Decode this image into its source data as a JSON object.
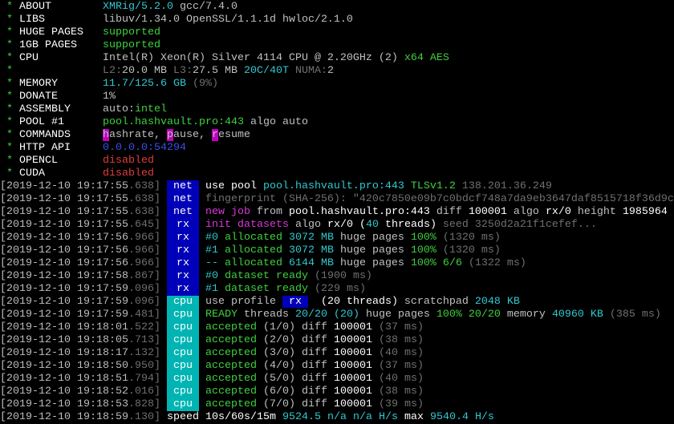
{
  "colors": {
    "W": "#ffffff",
    "L": "#c0c0c0",
    "G": "#3fd03f",
    "C": "#30c8d0",
    "B": "#3b4fe8",
    "R": "#e03c3c",
    "D": "#707070",
    "M": "#d838d8",
    "K": "#c000c0",
    "Y": "#0000b8"
  },
  "header": [
    {
      "label": "ABOUT",
      "parts": [
        [
          "XMRig/5.2.0",
          "C"
        ],
        [
          " gcc/7.4.0",
          "L"
        ]
      ]
    },
    {
      "label": "LIBS",
      "parts": [
        [
          "libuv/1.34.0 OpenSSL/1.1.1d hwloc/2.1.0",
          "L"
        ]
      ]
    },
    {
      "label": "HUGE PAGES",
      "parts": [
        [
          "supported",
          "G"
        ]
      ]
    },
    {
      "label": "1GB PAGES",
      "parts": [
        [
          "supported",
          "G"
        ]
      ]
    },
    {
      "label": "CPU",
      "parts": [
        [
          "Intel(R) Xeon(R) Silver 4114 CPU @ 2.20GHz (2)",
          "L"
        ],
        [
          " x64 AES",
          "G"
        ]
      ]
    },
    {
      "label": "",
      "parts": [
        [
          "L2:",
          "D"
        ],
        [
          "20.0 MB",
          "L"
        ],
        [
          " L3:",
          "D"
        ],
        [
          "27.5 MB",
          "L"
        ],
        [
          " 20C/40T",
          "C"
        ],
        [
          " NUMA:",
          "D"
        ],
        [
          "2",
          "L"
        ]
      ]
    },
    {
      "label": "MEMORY",
      "parts": [
        [
          "11.7/125.6 GB",
          "C"
        ],
        [
          " (9%)",
          "D"
        ]
      ]
    },
    {
      "label": "DONATE",
      "parts": [
        [
          "1%",
          "L"
        ]
      ]
    },
    {
      "label": "ASSEMBLY",
      "parts": [
        [
          "auto:",
          "L"
        ],
        [
          "intel",
          "G"
        ]
      ]
    },
    {
      "label": "POOL #1",
      "parts": [
        [
          "pool.hashvault.pro:443",
          "G"
        ],
        [
          " algo auto",
          "L"
        ]
      ]
    },
    {
      "label": "COMMANDS",
      "parts": [
        [
          "h",
          "L",
          "K"
        ],
        [
          "ashrate, ",
          "L"
        ],
        [
          "p",
          "L",
          "K"
        ],
        [
          "ause, ",
          "L"
        ],
        [
          "r",
          "L",
          "K"
        ],
        [
          "esume",
          "L"
        ]
      ]
    },
    {
      "label": "HTTP API",
      "parts": [
        [
          "0.0.0.0:54294",
          "B"
        ]
      ]
    },
    {
      "label": "OPENCL",
      "parts": [
        [
          "disabled",
          "R"
        ]
      ]
    },
    {
      "label": "CUDA",
      "parts": [
        [
          "disabled",
          "R"
        ]
      ]
    }
  ],
  "log": [
    {
      "time": "2019-12-10 19:17:55.638",
      "tag": "net",
      "parts": [
        [
          "use pool ",
          "W"
        ],
        [
          "pool.hashvault.pro:443",
          "C"
        ],
        [
          " TLSv1.2",
          "G"
        ],
        [
          " 138.201.36.249",
          "D"
        ]
      ]
    },
    {
      "time": "2019-12-10 19:17:55.638",
      "tag": "net",
      "parts": [
        [
          "fingerprint (SHA-256): \"420c7850e09b7c0bdcf748a7da9eb3647daf8515718f36d9c",
          "D"
        ]
      ]
    },
    {
      "time": "2019-12-10 19:17:55.638",
      "tag": "net",
      "parts": [
        [
          "new job",
          "M"
        ],
        [
          " from ",
          "L"
        ],
        [
          "pool.hashvault.pro:443",
          "W"
        ],
        [
          " diff ",
          "L"
        ],
        [
          "100001",
          "W"
        ],
        [
          " algo ",
          "L"
        ],
        [
          "rx/0",
          "W"
        ],
        [
          " height ",
          "L"
        ],
        [
          "1985964",
          "W"
        ]
      ]
    },
    {
      "time": "2019-12-10 19:17:55.645",
      "tag": "rx",
      "parts": [
        [
          "init datasets",
          "M"
        ],
        [
          " algo ",
          "L"
        ],
        [
          "rx/0",
          "W"
        ],
        [
          " (",
          "W"
        ],
        [
          "40",
          "C"
        ],
        [
          " threads)",
          "W"
        ],
        [
          " seed 3250d2a21f1cefef...",
          "D"
        ]
      ]
    },
    {
      "time": "2019-12-10 19:17:56.966",
      "tag": "rx",
      "parts": [
        [
          "#0",
          "C"
        ],
        [
          " allocated ",
          "G"
        ],
        [
          "3072 MB",
          "C"
        ],
        [
          " huge pages ",
          "L"
        ],
        [
          "100%",
          "G"
        ],
        [
          " (1320 ms)",
          "D"
        ]
      ]
    },
    {
      "time": "2019-12-10 19:17:56.966",
      "tag": "rx",
      "parts": [
        [
          "#1",
          "C"
        ],
        [
          " allocated ",
          "G"
        ],
        [
          "3072 MB",
          "C"
        ],
        [
          " huge pages ",
          "L"
        ],
        [
          "100%",
          "G"
        ],
        [
          " (1320 ms)",
          "D"
        ]
      ]
    },
    {
      "time": "2019-12-10 19:17:56.966",
      "tag": "rx",
      "parts": [
        [
          "--",
          "C"
        ],
        [
          " allocated ",
          "G"
        ],
        [
          "6144 MB",
          "C"
        ],
        [
          " huge pages ",
          "L"
        ],
        [
          "100%",
          "G"
        ],
        [
          " 6/6",
          "G"
        ],
        [
          " (1322 ms)",
          "D"
        ]
      ]
    },
    {
      "time": "2019-12-10 19:17:58.867",
      "tag": "rx",
      "parts": [
        [
          "#0",
          "C"
        ],
        [
          " dataset ready",
          "G"
        ],
        [
          " (1900 ms)",
          "D"
        ]
      ]
    },
    {
      "time": "2019-12-10 19:17:59.096",
      "tag": "rx",
      "parts": [
        [
          "#1",
          "C"
        ],
        [
          " dataset ready",
          "G"
        ],
        [
          " (229 ms)",
          "D"
        ]
      ]
    },
    {
      "time": "2019-12-10 19:17:59.096",
      "tag": "cpu",
      "parts": [
        [
          "use profile ",
          "L"
        ],
        [
          " rx ",
          "W",
          "Y"
        ],
        [
          "  (",
          "W"
        ],
        [
          "20",
          "W"
        ],
        [
          " threads)",
          "W"
        ],
        [
          " scratchpad ",
          "L"
        ],
        [
          "2048 KB",
          "C"
        ]
      ]
    },
    {
      "time": "2019-12-10 19:17:59.481",
      "tag": "cpu",
      "parts": [
        [
          "READY",
          "G"
        ],
        [
          " threads ",
          "L"
        ],
        [
          "20/20",
          "C"
        ],
        [
          " (20)",
          "C"
        ],
        [
          " huge pages ",
          "L"
        ],
        [
          "100%",
          "G"
        ],
        [
          " 20/20",
          "G"
        ],
        [
          " memory ",
          "L"
        ],
        [
          "40960 KB",
          "C"
        ],
        [
          " (385 ms)",
          "D"
        ]
      ]
    },
    {
      "time": "2019-12-10 19:18:01.522",
      "tag": "cpu",
      "parts": [
        [
          "accepted",
          "G"
        ],
        [
          " (1/0)",
          "L"
        ],
        [
          " diff ",
          "L"
        ],
        [
          "100001",
          "W"
        ],
        [
          " (37 ms)",
          "D"
        ]
      ]
    },
    {
      "time": "2019-12-10 19:18:05.713",
      "tag": "cpu",
      "parts": [
        [
          "accepted",
          "G"
        ],
        [
          " (2/0)",
          "L"
        ],
        [
          " diff ",
          "L"
        ],
        [
          "100001",
          "W"
        ],
        [
          " (38 ms)",
          "D"
        ]
      ]
    },
    {
      "time": "2019-12-10 19:18:17.132",
      "tag": "cpu",
      "parts": [
        [
          "accepted",
          "G"
        ],
        [
          " (3/0)",
          "L"
        ],
        [
          " diff ",
          "L"
        ],
        [
          "100001",
          "W"
        ],
        [
          " (40 ms)",
          "D"
        ]
      ]
    },
    {
      "time": "2019-12-10 19:18:50.950",
      "tag": "cpu",
      "parts": [
        [
          "accepted",
          "G"
        ],
        [
          " (4/0)",
          "L"
        ],
        [
          " diff ",
          "L"
        ],
        [
          "100001",
          "W"
        ],
        [
          " (37 ms)",
          "D"
        ]
      ]
    },
    {
      "time": "2019-12-10 19:18:51.794",
      "tag": "cpu",
      "parts": [
        [
          "accepted",
          "G"
        ],
        [
          " (5/0)",
          "L"
        ],
        [
          " diff ",
          "L"
        ],
        [
          "100001",
          "W"
        ],
        [
          " (40 ms)",
          "D"
        ]
      ]
    },
    {
      "time": "2019-12-10 19:18:52.016",
      "tag": "cpu",
      "parts": [
        [
          "accepted",
          "G"
        ],
        [
          " (6/0)",
          "L"
        ],
        [
          " diff ",
          "L"
        ],
        [
          "100001",
          "W"
        ],
        [
          " (38 ms)",
          "D"
        ]
      ]
    },
    {
      "time": "2019-12-10 19:18:53.828",
      "tag": "cpu",
      "parts": [
        [
          "accepted",
          "G"
        ],
        [
          " (7/0)",
          "L"
        ],
        [
          " diff ",
          "L"
        ],
        [
          "100001",
          "W"
        ],
        [
          " (39 ms)",
          "D"
        ]
      ]
    },
    {
      "time": "2019-12-10 19:18:59.130",
      "tag": "",
      "parts": [
        [
          "speed",
          "W"
        ],
        [
          " 10s/60s/15m",
          "W"
        ],
        [
          " 9524.5",
          "C"
        ],
        [
          " n/a n/a",
          "C"
        ],
        [
          " H/s",
          "C"
        ],
        [
          " max",
          "W"
        ],
        [
          " 9540.4 H/s",
          "C"
        ]
      ]
    }
  ]
}
